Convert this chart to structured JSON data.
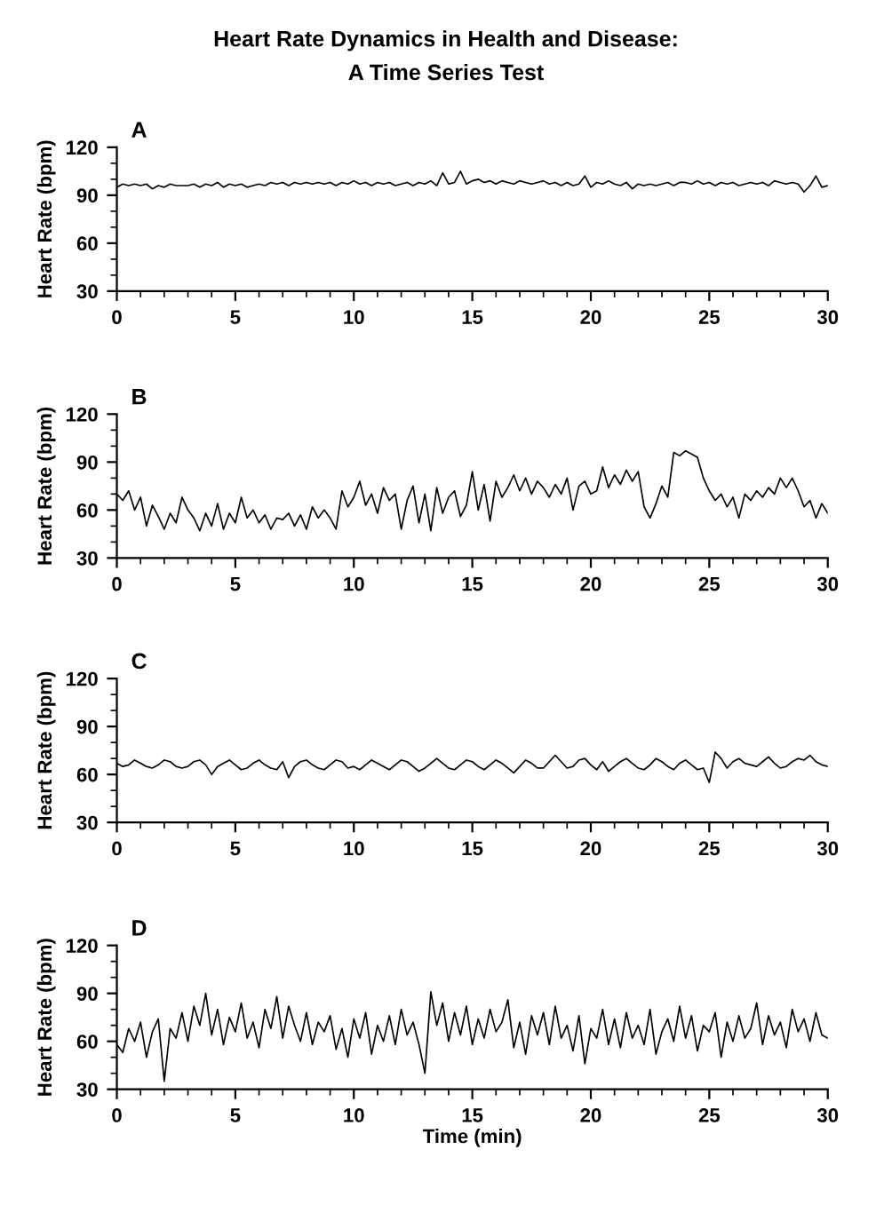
{
  "chart_data": [
    {
      "type": "line",
      "title": "A",
      "ylabel": "Heart Rate (bpm)",
      "annotations": [
        "Heart Rate Dynamics in Health and Disease:\nA Time Series Test"
      ],
      "xlim": [
        0,
        30
      ],
      "ylim": [
        30,
        120
      ],
      "xticks": [
        0,
        {
          "value": 1,
          "label": null
        },
        {
          "value": 2,
          "label": null
        },
        {
          "value": 3,
          "label": null
        },
        {
          "value": 4,
          "label": null
        },
        5,
        {
          "value": 6,
          "label": null
        },
        {
          "value": 7,
          "label": null
        },
        {
          "value": 8,
          "label": null
        },
        {
          "value": 9,
          "label": null
        },
        10,
        {
          "value": 11,
          "label": null
        },
        {
          "value": 12,
          "label": null
        },
        {
          "value": 13,
          "label": null
        },
        {
          "value": 14,
          "label": null
        },
        15,
        {
          "value": 16,
          "label": null
        },
        {
          "value": 17,
          "label": null
        },
        {
          "value": 18,
          "label": null
        },
        {
          "value": 19,
          "label": null
        },
        20,
        {
          "value": 21,
          "label": null
        },
        {
          "value": 22,
          "label": null
        },
        {
          "value": 23,
          "label": null
        },
        {
          "value": 24,
          "label": null
        },
        25,
        {
          "value": 26,
          "label": null
        },
        {
          "value": 27,
          "label": null
        },
        {
          "value": 28,
          "label": null
        },
        {
          "value": 29,
          "label": null
        },
        30
      ],
      "yticks": [
        30,
        {
          "value": 40,
          "label": null
        },
        {
          "value": 50,
          "label": null
        },
        60,
        {
          "value": 70,
          "label": null
        },
        {
          "value": 80,
          "label": null
        },
        90,
        {
          "value": 100,
          "label": null
        },
        {
          "value": 110,
          "label": null
        },
        120
      ],
      "grid": false,
      "legend": false,
      "marker": "none",
      "line_style": "solid",
      "series": [
        {
          "color": "#000000",
          "x": [
            0,
            0.25,
            0.5,
            0.75,
            1,
            1.25,
            1.5,
            1.75,
            2,
            2.25,
            2.5,
            2.75,
            3,
            3.25,
            3.5,
            3.75,
            4,
            4.25,
            4.5,
            4.75,
            5,
            5.25,
            5.5,
            5.75,
            6,
            6.25,
            6.5,
            6.75,
            7,
            7.25,
            7.5,
            7.75,
            8,
            8.25,
            8.5,
            8.75,
            9,
            9.25,
            9.5,
            9.75,
            10,
            10.25,
            10.5,
            10.75,
            11,
            11.25,
            11.5,
            11.75,
            12,
            12.25,
            12.5,
            12.75,
            13,
            13.25,
            13.5,
            13.75,
            14,
            14.25,
            14.5,
            14.75,
            15,
            15.25,
            15.5,
            15.75,
            16,
            16.25,
            16.5,
            16.75,
            17,
            17.25,
            17.5,
            17.75,
            18,
            18.25,
            18.5,
            18.75,
            19,
            19.25,
            19.5,
            19.75,
            20,
            20.25,
            20.5,
            20.75,
            21,
            21.25,
            21.5,
            21.75,
            22,
            22.25,
            22.5,
            22.75,
            23,
            23.25,
            23.5,
            23.75,
            24,
            24.25,
            24.5,
            24.75,
            25,
            25.25,
            25.5,
            25.75,
            26,
            26.25,
            26.5,
            26.75,
            27,
            27.25,
            27.5,
            27.75,
            28,
            28.25,
            28.5,
            28.75,
            29,
            29.25,
            29.5,
            29.75,
            30
          ],
          "values": [
            95,
            97,
            96,
            97,
            96,
            97,
            94,
            96,
            95,
            97,
            96,
            96,
            96,
            97,
            95,
            97,
            96,
            98,
            95,
            97,
            96,
            97,
            95,
            96,
            97,
            96,
            98,
            97,
            98,
            96,
            98,
            97,
            98,
            97,
            98,
            97,
            98,
            96,
            98,
            97,
            99,
            97,
            98,
            96,
            98,
            97,
            98,
            96,
            97,
            98,
            96,
            98,
            97,
            99,
            96,
            104,
            97,
            98,
            105,
            97,
            99,
            100,
            98,
            99,
            97,
            99,
            98,
            97,
            99,
            98,
            97,
            98,
            99,
            97,
            98,
            96,
            98,
            96,
            97,
            102,
            95,
            98,
            97,
            99,
            97,
            96,
            98,
            94,
            97,
            96,
            97,
            96,
            97,
            98,
            96,
            98,
            98,
            97,
            99,
            97,
            98,
            96,
            98,
            97,
            98,
            96,
            97,
            98,
            97,
            98,
            96,
            99,
            98,
            97,
            98,
            97,
            92,
            96,
            102,
            95,
            96
          ]
        }
      ]
    },
    {
      "type": "line",
      "title": "B",
      "ylabel": "Heart Rate (bpm)",
      "xlim": [
        0,
        30
      ],
      "ylim": [
        30,
        120
      ],
      "xticks": [
        0,
        {
          "value": 1,
          "label": null
        },
        {
          "value": 2,
          "label": null
        },
        {
          "value": 3,
          "label": null
        },
        {
          "value": 4,
          "label": null
        },
        5,
        {
          "value": 6,
          "label": null
        },
        {
          "value": 7,
          "label": null
        },
        {
          "value": 8,
          "label": null
        },
        {
          "value": 9,
          "label": null
        },
        10,
        {
          "value": 11,
          "label": null
        },
        {
          "value": 12,
          "label": null
        },
        {
          "value": 13,
          "label": null
        },
        {
          "value": 14,
          "label": null
        },
        15,
        {
          "value": 16,
          "label": null
        },
        {
          "value": 17,
          "label": null
        },
        {
          "value": 18,
          "label": null
        },
        {
          "value": 19,
          "label": null
        },
        20,
        {
          "value": 21,
          "label": null
        },
        {
          "value": 22,
          "label": null
        },
        {
          "value": 23,
          "label": null
        },
        {
          "value": 24,
          "label": null
        },
        25,
        {
          "value": 26,
          "label": null
        },
        {
          "value": 27,
          "label": null
        },
        {
          "value": 28,
          "label": null
        },
        {
          "value": 29,
          "label": null
        },
        30
      ],
      "yticks": [
        30,
        {
          "value": 40,
          "label": null
        },
        {
          "value": 50,
          "label": null
        },
        60,
        {
          "value": 70,
          "label": null
        },
        {
          "value": 80,
          "label": null
        },
        90,
        {
          "value": 100,
          "label": null
        },
        {
          "value": 110,
          "label": null
        },
        120
      ],
      "grid": false,
      "legend": false,
      "marker": "none",
      "line_style": "solid",
      "series": [
        {
          "color": "#000000",
          "x": [
            0,
            0.25,
            0.5,
            0.75,
            1,
            1.25,
            1.5,
            1.75,
            2,
            2.25,
            2.5,
            2.75,
            3,
            3.25,
            3.5,
            3.75,
            4,
            4.25,
            4.5,
            4.75,
            5,
            5.25,
            5.5,
            5.75,
            6,
            6.25,
            6.5,
            6.75,
            7,
            7.25,
            7.5,
            7.75,
            8,
            8.25,
            8.5,
            8.75,
            9,
            9.25,
            9.5,
            9.75,
            10,
            10.25,
            10.5,
            10.75,
            11,
            11.25,
            11.5,
            11.75,
            12,
            12.25,
            12.5,
            12.75,
            13,
            13.25,
            13.5,
            13.75,
            14,
            14.25,
            14.5,
            14.75,
            15,
            15.25,
            15.5,
            15.75,
            16,
            16.25,
            16.5,
            16.75,
            17,
            17.25,
            17.5,
            17.75,
            18,
            18.25,
            18.5,
            18.75,
            19,
            19.25,
            19.5,
            19.75,
            20,
            20.25,
            20.5,
            20.75,
            21,
            21.25,
            21.5,
            21.75,
            22,
            22.25,
            22.5,
            22.75,
            23,
            23.25,
            23.5,
            23.75,
            24,
            24.25,
            24.5,
            24.75,
            25,
            25.25,
            25.5,
            25.75,
            26,
            26.25,
            26.5,
            26.75,
            27,
            27.25,
            27.5,
            27.75,
            28,
            28.25,
            28.5,
            28.75,
            29,
            29.25,
            29.5,
            29.75,
            30
          ],
          "values": [
            70,
            66,
            72,
            60,
            68,
            50,
            63,
            56,
            48,
            58,
            52,
            68,
            60,
            55,
            47,
            58,
            50,
            64,
            48,
            58,
            52,
            68,
            55,
            60,
            52,
            57,
            48,
            55,
            54,
            58,
            50,
            57,
            48,
            62,
            55,
            60,
            55,
            48,
            72,
            62,
            68,
            78,
            63,
            70,
            58,
            74,
            66,
            70,
            48,
            66,
            75,
            52,
            70,
            47,
            74,
            58,
            68,
            72,
            56,
            63,
            84,
            60,
            76,
            53,
            78,
            68,
            74,
            82,
            72,
            80,
            70,
            78,
            74,
            68,
            76,
            70,
            80,
            60,
            75,
            78,
            70,
            72,
            87,
            74,
            82,
            76,
            85,
            78,
            84,
            62,
            55,
            64,
            75,
            68,
            96,
            94,
            97,
            95,
            93,
            80,
            72,
            66,
            70,
            62,
            68,
            55,
            70,
            66,
            72,
            68,
            74,
            70,
            80,
            74,
            80,
            72,
            62,
            66,
            55,
            64,
            58
          ]
        }
      ]
    },
    {
      "type": "line",
      "title": "C",
      "ylabel": "Heart Rate (bpm)",
      "xlim": [
        0,
        30
      ],
      "ylim": [
        30,
        120
      ],
      "xticks": [
        0,
        {
          "value": 1,
          "label": null
        },
        {
          "value": 2,
          "label": null
        },
        {
          "value": 3,
          "label": null
        },
        {
          "value": 4,
          "label": null
        },
        5,
        {
          "value": 6,
          "label": null
        },
        {
          "value": 7,
          "label": null
        },
        {
          "value": 8,
          "label": null
        },
        {
          "value": 9,
          "label": null
        },
        10,
        {
          "value": 11,
          "label": null
        },
        {
          "value": 12,
          "label": null
        },
        {
          "value": 13,
          "label": null
        },
        {
          "value": 14,
          "label": null
        },
        15,
        {
          "value": 16,
          "label": null
        },
        {
          "value": 17,
          "label": null
        },
        {
          "value": 18,
          "label": null
        },
        {
          "value": 19,
          "label": null
        },
        20,
        {
          "value": 21,
          "label": null
        },
        {
          "value": 22,
          "label": null
        },
        {
          "value": 23,
          "label": null
        },
        {
          "value": 24,
          "label": null
        },
        25,
        {
          "value": 26,
          "label": null
        },
        {
          "value": 27,
          "label": null
        },
        {
          "value": 28,
          "label": null
        },
        {
          "value": 29,
          "label": null
        },
        30
      ],
      "yticks": [
        30,
        {
          "value": 40,
          "label": null
        },
        {
          "value": 50,
          "label": null
        },
        60,
        {
          "value": 70,
          "label": null
        },
        {
          "value": 80,
          "label": null
        },
        90,
        {
          "value": 100,
          "label": null
        },
        {
          "value": 110,
          "label": null
        },
        120
      ],
      "grid": false,
      "legend": false,
      "marker": "none",
      "line_style": "solid",
      "series": [
        {
          "color": "#000000",
          "x": [
            0,
            0.25,
            0.5,
            0.75,
            1,
            1.25,
            1.5,
            1.75,
            2,
            2.25,
            2.5,
            2.75,
            3,
            3.25,
            3.5,
            3.75,
            4,
            4.25,
            4.5,
            4.75,
            5,
            5.25,
            5.5,
            5.75,
            6,
            6.25,
            6.5,
            6.75,
            7,
            7.25,
            7.5,
            7.75,
            8,
            8.25,
            8.5,
            8.75,
            9,
            9.25,
            9.5,
            9.75,
            10,
            10.25,
            10.5,
            10.75,
            11,
            11.25,
            11.5,
            11.75,
            12,
            12.25,
            12.5,
            12.75,
            13,
            13.25,
            13.5,
            13.75,
            14,
            14.25,
            14.5,
            14.75,
            15,
            15.25,
            15.5,
            15.75,
            16,
            16.25,
            16.5,
            16.75,
            17,
            17.25,
            17.5,
            17.75,
            18,
            18.25,
            18.5,
            18.75,
            19,
            19.25,
            19.5,
            19.75,
            20,
            20.25,
            20.5,
            20.75,
            21,
            21.25,
            21.5,
            21.75,
            22,
            22.25,
            22.5,
            22.75,
            23,
            23.25,
            23.5,
            23.75,
            24,
            24.25,
            24.5,
            24.75,
            25,
            25.25,
            25.5,
            25.75,
            26,
            26.25,
            26.5,
            26.75,
            27,
            27.25,
            27.5,
            27.75,
            28,
            28.25,
            28.5,
            28.75,
            29,
            29.25,
            29.5,
            29.75,
            30
          ],
          "values": [
            67,
            65,
            66,
            69,
            67,
            65,
            64,
            66,
            69,
            68,
            65,
            64,
            65,
            68,
            69,
            66,
            60,
            65,
            67,
            69,
            66,
            63,
            64,
            67,
            69,
            66,
            64,
            63,
            68,
            58,
            65,
            68,
            69,
            66,
            64,
            63,
            66,
            69,
            68,
            64,
            65,
            63,
            66,
            69,
            67,
            65,
            63,
            66,
            69,
            68,
            65,
            62,
            64,
            67,
            70,
            67,
            64,
            63,
            66,
            69,
            68,
            65,
            63,
            66,
            69,
            67,
            64,
            61,
            65,
            69,
            67,
            64,
            64,
            68,
            72,
            68,
            64,
            65,
            69,
            70,
            66,
            63,
            68,
            62,
            65,
            68,
            70,
            67,
            64,
            63,
            66,
            70,
            68,
            65,
            63,
            67,
            69,
            66,
            63,
            64,
            55,
            74,
            70,
            64,
            68,
            70,
            67,
            66,
            65,
            68,
            71,
            67,
            64,
            65,
            68,
            70,
            69,
            72,
            68,
            66,
            65
          ]
        }
      ]
    },
    {
      "type": "line",
      "title": "D",
      "ylabel": "Heart Rate (bpm)",
      "xlabel": "Time (min)",
      "xlim": [
        0,
        30
      ],
      "ylim": [
        30,
        120
      ],
      "xticks": [
        0,
        {
          "value": 1,
          "label": null
        },
        {
          "value": 2,
          "label": null
        },
        {
          "value": 3,
          "label": null
        },
        {
          "value": 4,
          "label": null
        },
        5,
        {
          "value": 6,
          "label": null
        },
        {
          "value": 7,
          "label": null
        },
        {
          "value": 8,
          "label": null
        },
        {
          "value": 9,
          "label": null
        },
        10,
        {
          "value": 11,
          "label": null
        },
        {
          "value": 12,
          "label": null
        },
        {
          "value": 13,
          "label": null
        },
        {
          "value": 14,
          "label": null
        },
        15,
        {
          "value": 16,
          "label": null
        },
        {
          "value": 17,
          "label": null
        },
        {
          "value": 18,
          "label": null
        },
        {
          "value": 19,
          "label": null
        },
        20,
        {
          "value": 21,
          "label": null
        },
        {
          "value": 22,
          "label": null
        },
        {
          "value": 23,
          "label": null
        },
        {
          "value": 24,
          "label": null
        },
        25,
        {
          "value": 26,
          "label": null
        },
        {
          "value": 27,
          "label": null
        },
        {
          "value": 28,
          "label": null
        },
        {
          "value": 29,
          "label": null
        },
        30
      ],
      "yticks": [
        30,
        {
          "value": 40,
          "label": null
        },
        {
          "value": 50,
          "label": null
        },
        60,
        {
          "value": 70,
          "label": null
        },
        {
          "value": 80,
          "label": null
        },
        90,
        {
          "value": 100,
          "label": null
        },
        {
          "value": 110,
          "label": null
        },
        120
      ],
      "grid": false,
      "legend": false,
      "marker": "none",
      "line_style": "solid",
      "series": [
        {
          "color": "#000000",
          "x": [
            0,
            0.25,
            0.5,
            0.75,
            1,
            1.25,
            1.5,
            1.75,
            2,
            2.25,
            2.5,
            2.75,
            3,
            3.25,
            3.5,
            3.75,
            4,
            4.25,
            4.5,
            4.75,
            5,
            5.25,
            5.5,
            5.75,
            6,
            6.25,
            6.5,
            6.75,
            7,
            7.25,
            7.5,
            7.75,
            8,
            8.25,
            8.5,
            8.75,
            9,
            9.25,
            9.5,
            9.75,
            10,
            10.25,
            10.5,
            10.75,
            11,
            11.25,
            11.5,
            11.75,
            12,
            12.25,
            12.5,
            12.75,
            13,
            13.25,
            13.5,
            13.75,
            14,
            14.25,
            14.5,
            14.75,
            15,
            15.25,
            15.5,
            15.75,
            16,
            16.25,
            16.5,
            16.75,
            17,
            17.25,
            17.5,
            17.75,
            18,
            18.25,
            18.5,
            18.75,
            19,
            19.25,
            19.5,
            19.75,
            20,
            20.25,
            20.5,
            20.75,
            21,
            21.25,
            21.5,
            21.75,
            22,
            22.25,
            22.5,
            22.75,
            23,
            23.25,
            23.5,
            23.75,
            24,
            24.25,
            24.5,
            24.75,
            25,
            25.25,
            25.5,
            25.75,
            26,
            26.25,
            26.5,
            26.75,
            27,
            27.25,
            27.5,
            27.75,
            28,
            28.25,
            28.5,
            28.75,
            29,
            29.25,
            29.5,
            29.75,
            30
          ],
          "values": [
            58,
            53,
            68,
            60,
            72,
            50,
            66,
            74,
            35,
            68,
            62,
            78,
            60,
            82,
            70,
            90,
            64,
            80,
            58,
            75,
            66,
            84,
            62,
            72,
            56,
            80,
            68,
            88,
            62,
            82,
            70,
            60,
            78,
            58,
            72,
            66,
            76,
            55,
            68,
            50,
            74,
            62,
            78,
            52,
            70,
            60,
            76,
            58,
            80,
            64,
            72,
            58,
            40,
            91,
            70,
            84,
            60,
            78,
            64,
            82,
            58,
            74,
            62,
            80,
            66,
            72,
            86,
            56,
            72,
            52,
            76,
            64,
            78,
            58,
            82,
            62,
            70,
            54,
            76,
            46,
            68,
            62,
            80,
            58,
            74,
            56,
            78,
            62,
            70,
            58,
            80,
            52,
            66,
            74,
            60,
            82,
            62,
            76,
            54,
            70,
            66,
            78,
            50,
            72,
            60,
            76,
            62,
            68,
            84,
            58,
            76,
            64,
            72,
            56,
            80,
            66,
            74,
            60,
            78,
            64,
            62
          ]
        }
      ]
    }
  ]
}
